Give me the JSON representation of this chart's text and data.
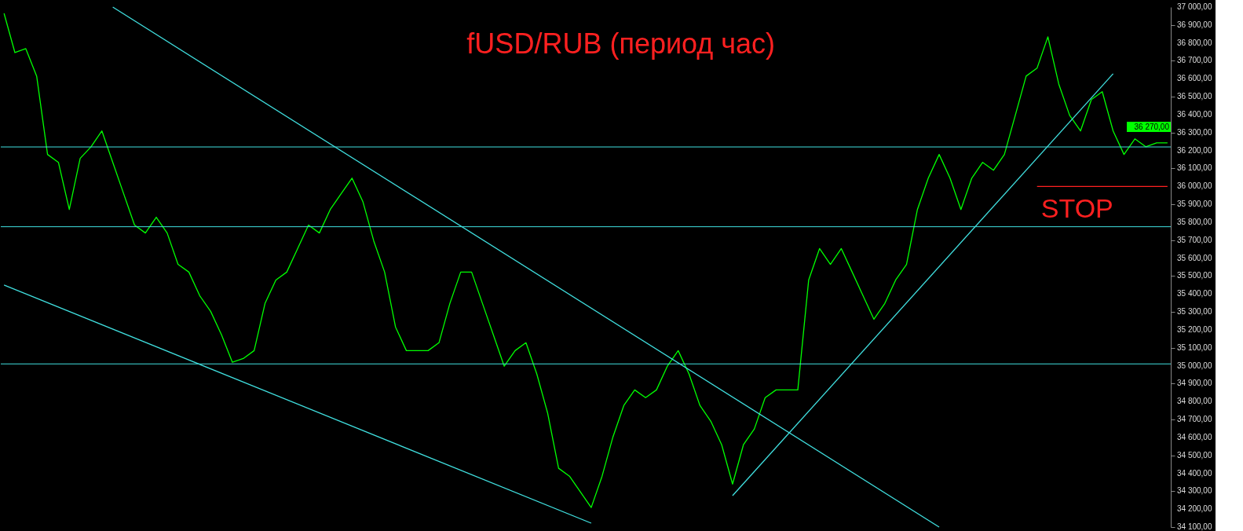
{
  "chart_data": {
    "type": "line",
    "title": "fUSD/RUB (период час)",
    "ylim": [
      34100,
      37000
    ],
    "grid": false,
    "line_style": "solid",
    "marker": "none",
    "categories": [
      null,
      null,
      null,
      null,
      null,
      null,
      null,
      null,
      null,
      null,
      null,
      null,
      null,
      null,
      null,
      null,
      null,
      null,
      null,
      null,
      null,
      null,
      null,
      null,
      null,
      null,
      null,
      null,
      null,
      null,
      null,
      null,
      null,
      null,
      null,
      null,
      null,
      null,
      null,
      null,
      null,
      null,
      null,
      null,
      null,
      null,
      null,
      null,
      null,
      null,
      null,
      null,
      null,
      null,
      null,
      null,
      null,
      null,
      null,
      null,
      null,
      null,
      null,
      null,
      null,
      null,
      null,
      null,
      null,
      null,
      null,
      null,
      null,
      null,
      null,
      null,
      null,
      null,
      null,
      null,
      null,
      null,
      null,
      null,
      null,
      null,
      null,
      null,
      null,
      null,
      null,
      null,
      null,
      null,
      null,
      null,
      null,
      null,
      null,
      null,
      null,
      null,
      null,
      null,
      null,
      null,
      null,
      null
    ],
    "yticks": [
      {
        "value": 34100,
        "label": "34 100,00"
      },
      {
        "value": 34200,
        "label": "34 200,00"
      },
      {
        "value": 34300,
        "label": "34 300,00"
      },
      {
        "value": 34400,
        "label": "34 400,00"
      },
      {
        "value": 34500,
        "label": "34 500,00"
      },
      {
        "value": 34600,
        "label": "34 600,00"
      },
      {
        "value": 34700,
        "label": "34 700,00"
      },
      {
        "value": 34800,
        "label": "34 800,00"
      },
      {
        "value": 34900,
        "label": "34 900,00"
      },
      {
        "value": 35000,
        "label": "35 000,00"
      },
      {
        "value": 35100,
        "label": "35 100,00"
      },
      {
        "value": 35200,
        "label": "35 200,00"
      },
      {
        "value": 35300,
        "label": "35 300,00"
      },
      {
        "value": 35400,
        "label": "35 400,00"
      },
      {
        "value": 35500,
        "label": "35 500,00"
      },
      {
        "value": 35600,
        "label": "35 600,00"
      },
      {
        "value": 35700,
        "label": "35 700,00"
      },
      {
        "value": 35800,
        "label": "35 800,00"
      },
      {
        "value": 35900,
        "label": "35 900,00"
      },
      {
        "value": 36000,
        "label": "36 000,00"
      },
      {
        "value": 36100,
        "label": "36 100,00"
      },
      {
        "value": 36200,
        "label": "36 200,00"
      },
      {
        "value": 36300,
        "label": "36 300,00"
      },
      {
        "value": 36400,
        "label": "36 400,00"
      },
      {
        "value": 36500,
        "label": "36 500,00"
      },
      {
        "value": 36600,
        "label": "36 600,00"
      },
      {
        "value": 36700,
        "label": "36 700,00"
      },
      {
        "value": 36800,
        "label": "36 800,00"
      },
      {
        "value": 36900,
        "label": "36 900,00"
      },
      {
        "value": 37000,
        "label": "37 000,00"
      }
    ],
    "series": [
      {
        "color": "#00ff00",
        "values": [
          36965,
          36746,
          36768,
          36615,
          36178,
          36134,
          35871,
          36156,
          36221,
          36309,
          36134,
          35959,
          35784,
          35740,
          35828,
          35740,
          35565,
          35522,
          35390,
          35303,
          35172,
          35019,
          35040,
          35084,
          35347,
          35478,
          35522,
          35653,
          35784,
          35740,
          35871,
          35959,
          36046,
          35915,
          35696,
          35522,
          35216,
          35084,
          35084,
          35084,
          35128,
          35347,
          35522,
          35522,
          35347,
          35172,
          34997,
          35084,
          35128,
          34953,
          34734,
          34428,
          34384,
          34297,
          34209,
          34384,
          34603,
          34778,
          34865,
          34822,
          34865,
          34997,
          35084,
          34953,
          34778,
          34690,
          34559,
          34340,
          34559,
          34647,
          34822,
          34865,
          34865,
          34865,
          35478,
          35653,
          35565,
          35653,
          35522,
          35390,
          35259,
          35347,
          35478,
          35565,
          35871,
          36046,
          36178,
          36046,
          35871,
          36046,
          36134,
          36090,
          36178,
          36396,
          36615,
          36659,
          36834,
          36571,
          36396,
          36309,
          36484,
          36528,
          36309,
          36178,
          36265,
          36221,
          36243,
          36243
        ]
      },
      {
        "color": "#40e0e0",
        "values": [
          35450,
          null,
          null,
          null,
          null,
          null,
          null,
          null,
          null,
          null,
          null,
          null,
          null,
          null,
          null,
          null,
          null,
          null,
          null,
          null,
          null,
          null,
          null,
          null,
          null,
          null,
          null,
          null,
          null,
          null,
          null,
          null,
          null,
          null,
          null,
          null,
          null,
          null,
          null,
          null,
          null,
          null,
          null,
          null,
          null,
          null,
          null,
          null,
          null,
          null,
          null,
          null,
          null,
          null,
          34122,
          null,
          null,
          null,
          null,
          null,
          null,
          null,
          null,
          null,
          null,
          null,
          null,
          null,
          null,
          null,
          null,
          null,
          null,
          null,
          null,
          null,
          null,
          null,
          null,
          null,
          null,
          null,
          null,
          null,
          null,
          null,
          null,
          null,
          null,
          null,
          null,
          null,
          null,
          null,
          null,
          null,
          null,
          null,
          null,
          null,
          null,
          null,
          null,
          null,
          null,
          null,
          null,
          null
        ]
      },
      {
        "color": "#40e0e0",
        "values": [
          null,
          null,
          null,
          null,
          null,
          null,
          null,
          null,
          null,
          null,
          37000,
          null,
          null,
          null,
          null,
          null,
          null,
          null,
          null,
          null,
          null,
          null,
          null,
          null,
          null,
          null,
          null,
          null,
          null,
          null,
          null,
          null,
          null,
          null,
          null,
          null,
          null,
          null,
          null,
          null,
          null,
          null,
          null,
          null,
          null,
          null,
          null,
          null,
          null,
          null,
          null,
          null,
          null,
          null,
          null,
          null,
          null,
          null,
          null,
          null,
          null,
          null,
          null,
          null,
          null,
          null,
          null,
          null,
          null,
          null,
          null,
          null,
          null,
          null,
          null,
          null,
          null,
          null,
          null,
          null,
          null,
          null,
          null,
          null,
          null,
          null,
          34100,
          null,
          null,
          null,
          null,
          null,
          null,
          null,
          null,
          null,
          null,
          null,
          null,
          null,
          null,
          null,
          null,
          null,
          null,
          null,
          null,
          null
        ]
      },
      {
        "color": "#40e0e0",
        "values": [
          null,
          null,
          null,
          null,
          null,
          null,
          null,
          null,
          null,
          null,
          null,
          null,
          null,
          null,
          null,
          null,
          null,
          null,
          null,
          null,
          null,
          null,
          null,
          null,
          null,
          null,
          null,
          null,
          null,
          null,
          null,
          null,
          null,
          null,
          null,
          null,
          null,
          null,
          null,
          null,
          null,
          null,
          null,
          null,
          null,
          null,
          null,
          null,
          null,
          null,
          null,
          null,
          null,
          null,
          null,
          null,
          null,
          null,
          null,
          null,
          null,
          null,
          null,
          null,
          null,
          null,
          null,
          34275,
          null,
          null,
          null,
          null,
          null,
          null,
          null,
          null,
          null,
          null,
          null,
          null,
          null,
          null,
          null,
          null,
          null,
          null,
          null,
          null,
          null,
          null,
          null,
          null,
          null,
          null,
          null,
          null,
          null,
          null,
          null,
          null,
          null,
          null,
          36628,
          null,
          null,
          null,
          null,
          null
        ]
      },
      {
        "color": "#ff2020",
        "values": [
          null,
          null,
          null,
          null,
          null,
          null,
          null,
          null,
          null,
          null,
          null,
          null,
          null,
          null,
          null,
          null,
          null,
          null,
          null,
          null,
          null,
          null,
          null,
          null,
          null,
          null,
          null,
          null,
          null,
          null,
          null,
          null,
          null,
          null,
          null,
          null,
          null,
          null,
          null,
          null,
          null,
          null,
          null,
          null,
          null,
          null,
          null,
          null,
          null,
          null,
          null,
          null,
          null,
          null,
          null,
          null,
          null,
          null,
          null,
          null,
          null,
          null,
          null,
          null,
          null,
          null,
          null,
          null,
          null,
          null,
          null,
          null,
          null,
          null,
          null,
          null,
          null,
          null,
          null,
          null,
          null,
          null,
          null,
          null,
          null,
          null,
          null,
          null,
          null,
          null,
          null,
          null,
          null,
          null,
          null,
          36000,
          null,
          null,
          null,
          null,
          null,
          null,
          null,
          null,
          null,
          null,
          null,
          36000
        ]
      }
    ],
    "ref_lines": [
      {
        "axis": "y",
        "value": 36220,
        "color": "#40e0e0"
      },
      {
        "axis": "y",
        "value": 35775,
        "color": "#40e0e0"
      },
      {
        "axis": "y",
        "value": 35010,
        "color": "#40e0e0"
      }
    ],
    "annotations": [
      "STOP",
      "36 270,00"
    ]
  }
}
